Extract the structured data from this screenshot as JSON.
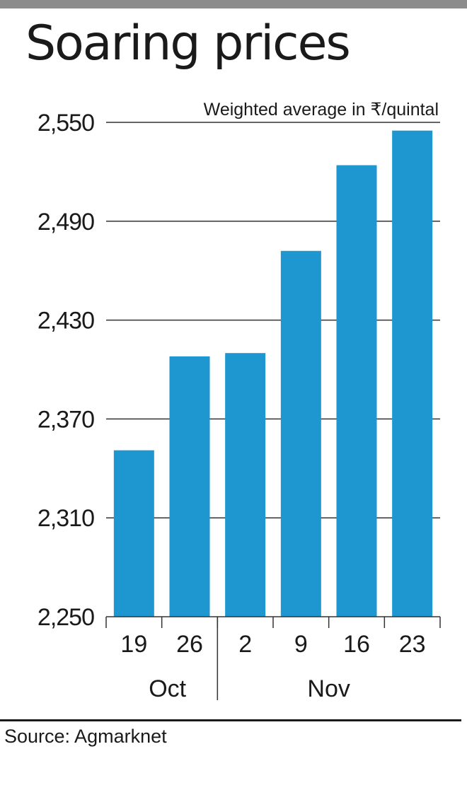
{
  "title": "Soaring prices",
  "source": "Source: Agmarknet",
  "colors": {
    "bar": "#1e96cf",
    "grid": "#333333",
    "text": "#1a1a1a"
  },
  "chart_data": {
    "type": "bar",
    "title": "Soaring prices",
    "ylabel": "Weighted average in ₹/quintal",
    "xlabel": "",
    "categories": [
      "19",
      "26",
      "2",
      "9",
      "16",
      "23"
    ],
    "month_groups": [
      {
        "label": "Oct",
        "categories": [
          "19",
          "26"
        ]
      },
      {
        "label": "Nov",
        "categories": [
          "2",
          "9",
          "16",
          "23"
        ]
      }
    ],
    "values": [
      2351,
      2408,
      2410,
      2472,
      2524,
      2545
    ],
    "ylim": [
      2250,
      2550
    ],
    "yticks": [
      "2,250",
      "2,310",
      "2,370",
      "2,430",
      "2,490",
      "2,550"
    ],
    "ytick_values": [
      2250,
      2310,
      2370,
      2430,
      2490,
      2550
    ],
    "grid": true,
    "legend": "none"
  }
}
